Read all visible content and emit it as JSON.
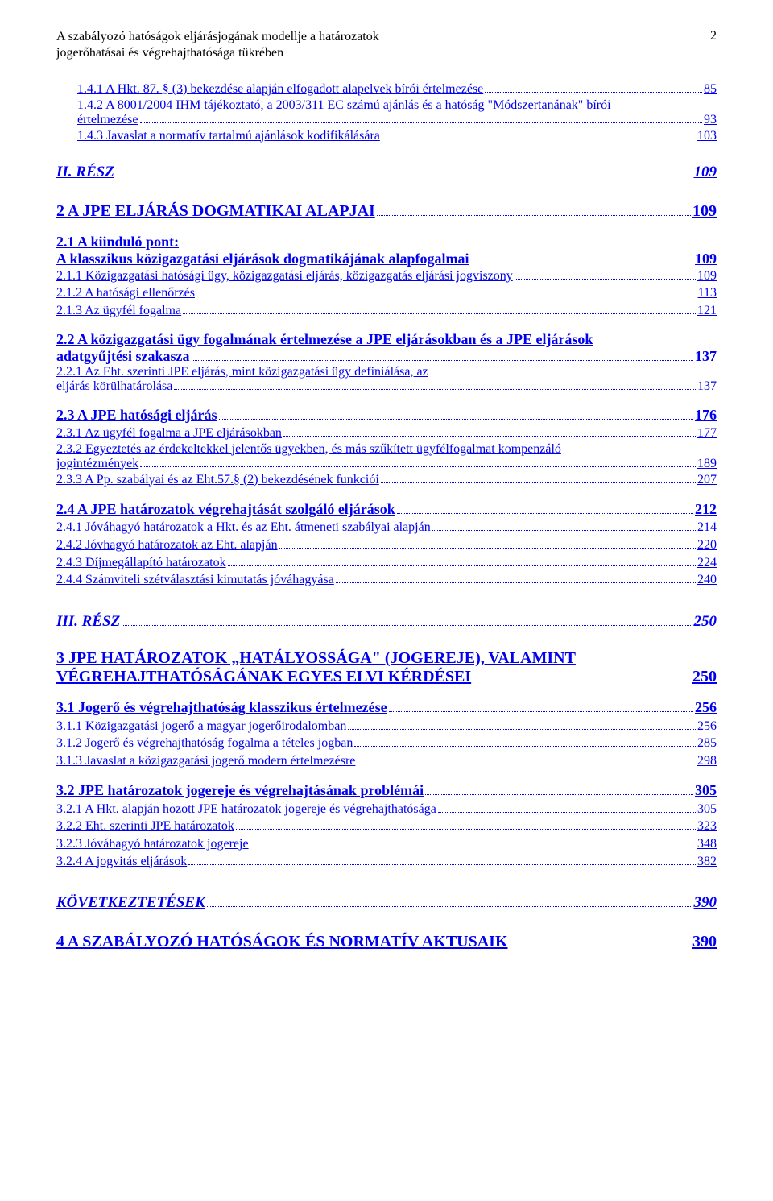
{
  "header": {
    "title_line1": "A szabályozó hatóságok eljárásjogának modellje a határozatok",
    "title_line2": "jogerőhatásai és végrehajthatósága tükrében",
    "page_number": "2"
  },
  "lines": {
    "l1_label": "1.4.1 A Hkt. 87. § (3) bekezdése alapján elfogadott alapelvek bírói értelmezése",
    "l1_page": "85",
    "l2_top": "1.4.2 A 8001/2004 IHM tájékoztató, a 2003/311 EC számú ajánlás és a hatóság \"Módszertanának\" bírói",
    "l2_last": "értelmezése",
    "l2_page": "93",
    "l3_label": "1.4.3 Javaslat a normatív tartalmú ajánlások kodifikálására",
    "l3_page": "103",
    "p2_label": " II. RÉSZ",
    "p2_page": "109",
    "s2_label": "2 A JPE ELJÁRÁS DOGMATIKAI ALAPJAI",
    "s2_page": "109",
    "s21_top": "2.1 A kiinduló pont:",
    "s21_last": "A klasszikus közigazgatási eljárások dogmatikájának alapfogalmai",
    "s21_page": "109",
    "l211_label": "2.1.1 Közigazgatási hatósági ügy, közigazgatási eljárás, közigazgatás eljárási jogviszony",
    "l211_page": "109",
    "l212_label": "2.1.2 A hatósági ellenőrzés",
    "l212_page": "113",
    "l213_label": "2.1.3 Az ügyfél fogalma",
    "l213_page": "121",
    "s22_top": "2.2 A közigazgatási ügy fogalmának értelmezése a JPE eljárásokban és a JPE eljárások",
    "s22_last": "adatgyűjtési szakasza",
    "s22_page": "137",
    "l221_top": "2.2.1 Az Eht. szerinti JPE eljárás, mint közigazgatási ügy definiálása, az",
    "l221_last": "eljárás körülhatárolása",
    "l221_page": "137",
    "s23_label": "2.3 A JPE hatósági eljárás",
    "s23_page": "176",
    "l231_label": "2.3.1 Az ügyfél fogalma a JPE eljárásokban",
    "l231_page": "177",
    "l232_top": "2.3.2 Egyeztetés az érdekeltekkel jelentős ügyekben, és más szűkített ügyfélfogalmat kompenzáló",
    "l232_last": "jogintézmények",
    "l232_page": "189",
    "l233_label": "2.3.3 A Pp. szabályai és az Eht.57.§ (2) bekezdésének funkciói",
    "l233_page": "207",
    "s24_label": "2.4 A JPE határozatok végrehajtását szolgáló eljárások",
    "s24_page": "212",
    "l241_label": "2.4.1 Jóváhagyó határozatok a Hkt. és az Eht. átmeneti szabályai alapján",
    "l241_page": "214",
    "l242_label": "2.4.2 Jóvhagyó határozatok az Eht. alapján",
    "l242_page": "220",
    "l243_label": "2.4.3 Díjmegállapító határozatok",
    "l243_page": "224",
    "l244_label": "2.4.4 Számviteli szétválasztási kimutatás jóváhagyása",
    "l244_page": "240",
    "p3_label": " III. RÉSZ",
    "p3_page": "250",
    "s3_top": "3 JPE HATÁROZATOK „HATÁLYOSSÁGA\" (JOGEREJE), VALAMINT",
    "s3_last": "VÉGREHAJTHATÓSÁGÁNAK EGYES ELVI KÉRDÉSEI",
    "s3_page": "250",
    "s31_label": "3.1 Jogerő és végrehajthatóság klasszikus értelmezése",
    "s31_page": "256",
    "l311_label": "3.1.1 Közigazgatási jogerő a magyar jogerőirodalomban",
    "l311_page": "256",
    "l312_label": "3.1.2 Jogerő és végrehajthatóság fogalma a tételes jogban",
    "l312_page": "285",
    "l313_label": "3.1.3 Javaslat a közigazgatási jogerő modern értelmezésre",
    "l313_page": "298",
    "s32_label": "3.2 JPE határozatok jogereje és végrehajtásának problémái",
    "s32_page": "305",
    "l321_label": "3.2.1 A Hkt. alapján hozott JPE határozatok jogereje és végrehajthatósága",
    "l321_page": "305",
    "l322_label": "3.2.2 Eht. szerinti JPE határozatok",
    "l322_page": "323",
    "l323_label": "3.2.3 Jóváhagyó határozatok jogereje",
    "l323_page": "348",
    "l324_label": "3.2.4 A jogvitás eljárások",
    "l324_page": "382",
    "kov_label": " KÖVETKEZTETÉSEK",
    "kov_page": "390",
    "s4_label": "4 A SZABÁLYOZÓ HATÓSÁGOK ÉS NORMATÍV AKTUSAIK",
    "s4_page": "390"
  }
}
